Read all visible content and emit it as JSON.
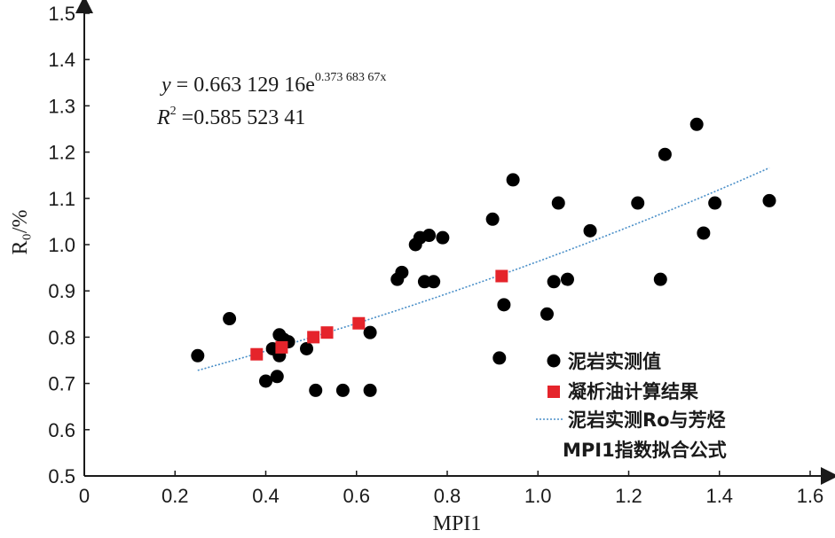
{
  "chart_data": {
    "type": "scatter",
    "xlabel": "MPI1",
    "ylabel": "R₀/%",
    "xlim": [
      0,
      1.6
    ],
    "ylim": [
      0.5,
      1.5
    ],
    "x_ticks": [
      "0",
      "0.2",
      "0.4",
      "0.6",
      "0.8",
      "1.0",
      "1.2",
      "1.4",
      "1.6"
    ],
    "y_ticks": [
      "0.5",
      "0.6",
      "0.7",
      "0.8",
      "0.9",
      "1.0",
      "1.1",
      "1.2",
      "1.3",
      "1.4",
      "1.5"
    ],
    "equation": {
      "y_prefix": "y",
      "equals": " = ",
      "coef": "0.663 129 16e",
      "exponent": "0.373 683 67x",
      "r2_label": "R",
      "r2_sup": "2",
      "r2_value": " =0.585 523 41"
    },
    "legend": [
      "泥岩实测值",
      "凝析油计算结果",
      "泥岩实测Ro与芳烃",
      "MPI1指数拟合公式"
    ],
    "colors": {
      "mudstone": "#000000",
      "condensate": "#e5242b",
      "fit": "#4a8fc8"
    },
    "series": [
      {
        "name": "泥岩实测值",
        "points": [
          [
            0.25,
            0.76
          ],
          [
            0.32,
            0.84
          ],
          [
            0.4,
            0.705
          ],
          [
            0.415,
            0.775
          ],
          [
            0.425,
            0.715
          ],
          [
            0.43,
            0.805
          ],
          [
            0.43,
            0.76
          ],
          [
            0.44,
            0.795
          ],
          [
            0.45,
            0.79
          ],
          [
            0.49,
            0.775
          ],
          [
            0.51,
            0.685
          ],
          [
            0.57,
            0.685
          ],
          [
            0.63,
            0.685
          ],
          [
            0.63,
            0.81
          ],
          [
            0.69,
            0.925
          ],
          [
            0.7,
            0.94
          ],
          [
            0.73,
            1.0
          ],
          [
            0.74,
            1.015
          ],
          [
            0.75,
            0.92
          ],
          [
            0.76,
            1.02
          ],
          [
            0.77,
            0.92
          ],
          [
            0.79,
            1.015
          ],
          [
            0.9,
            1.055
          ],
          [
            0.915,
            0.755
          ],
          [
            0.925,
            0.87
          ],
          [
            0.945,
            1.14
          ],
          [
            1.02,
            0.85
          ],
          [
            1.035,
            0.92
          ],
          [
            1.045,
            1.09
          ],
          [
            1.065,
            0.925
          ],
          [
            1.115,
            1.03
          ],
          [
            1.22,
            1.09
          ],
          [
            1.27,
            0.925
          ],
          [
            1.28,
            1.195
          ],
          [
            1.35,
            1.26
          ],
          [
            1.365,
            1.025
          ],
          [
            1.39,
            1.09
          ],
          [
            1.51,
            1.095
          ]
        ]
      },
      {
        "name": "凝析油计算结果",
        "points": [
          [
            0.38,
            0.763
          ],
          [
            0.435,
            0.778
          ],
          [
            0.505,
            0.8
          ],
          [
            0.535,
            0.81
          ],
          [
            0.605,
            0.83
          ],
          [
            0.92,
            0.932
          ]
        ]
      },
      {
        "name": "泥岩实测Ro与芳烃MPI1指数拟合公式",
        "fit": {
          "a": 0.66312916,
          "b": 0.37368367,
          "x_range": [
            0.25,
            1.51
          ]
        }
      }
    ]
  }
}
